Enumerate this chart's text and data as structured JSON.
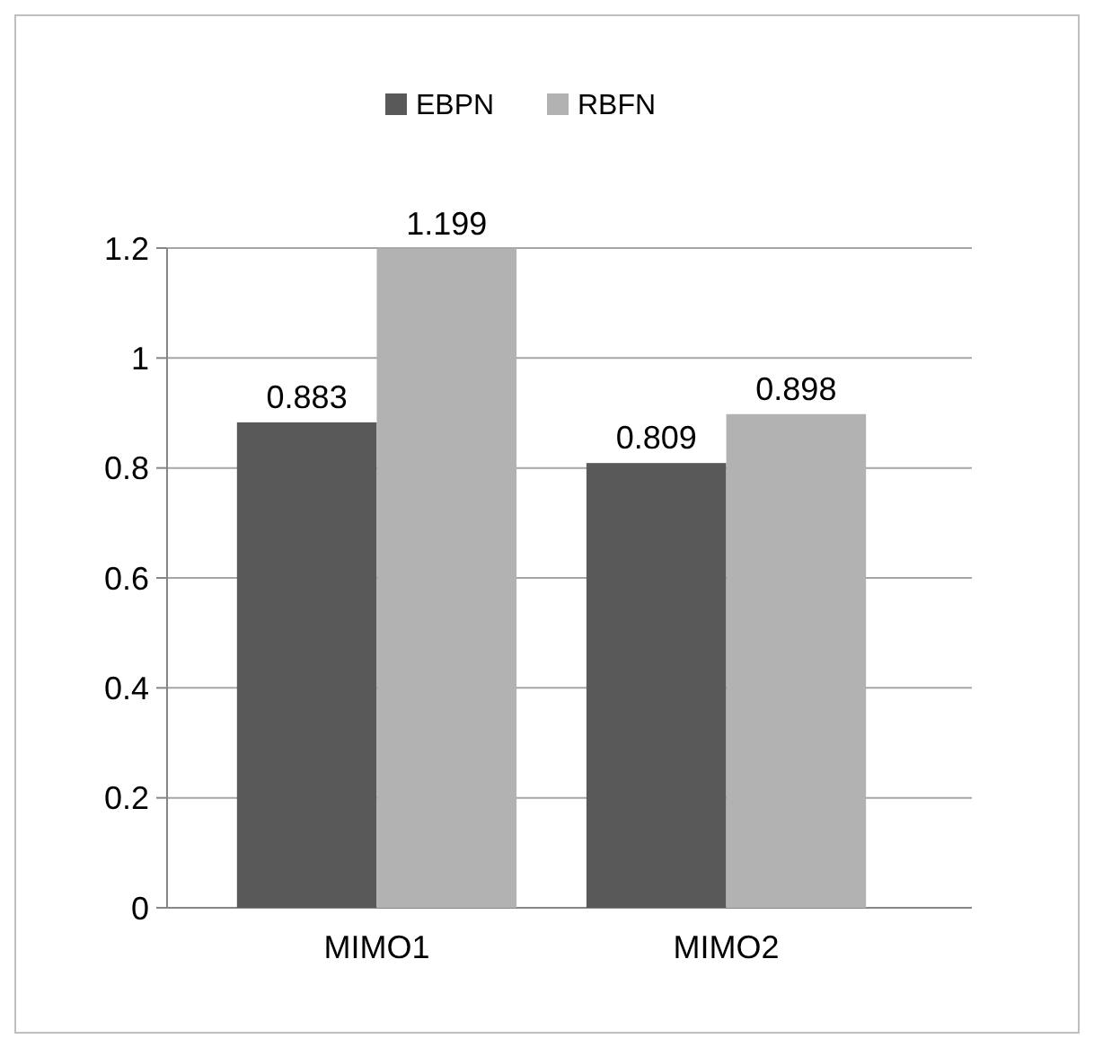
{
  "chart_data": {
    "type": "bar",
    "categories": [
      "MIMO1",
      "MIMO2"
    ],
    "series": [
      {
        "name": "EBPN",
        "color": "#595959",
        "values": [
          0.883,
          0.809
        ]
      },
      {
        "name": "RBFN",
        "color": "#b2b2b2",
        "values": [
          1.199,
          0.898
        ]
      }
    ],
    "ylim": [
      0,
      1.2
    ],
    "yticks": [
      0,
      0.2,
      0.4,
      0.6,
      0.8,
      1,
      1.2
    ],
    "grid": "y",
    "legend": "top",
    "data_labels": true
  }
}
